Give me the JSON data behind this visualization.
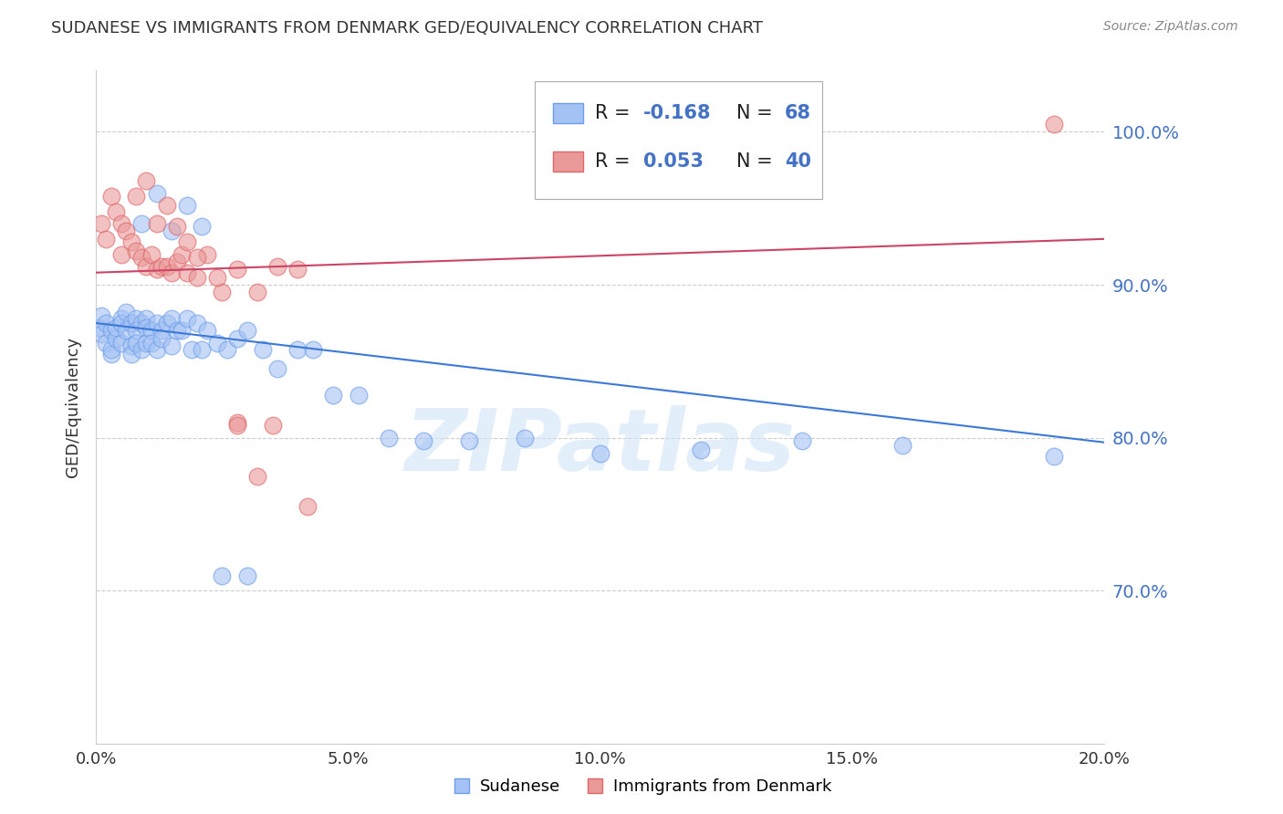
{
  "title": "SUDANESE VS IMMIGRANTS FROM DENMARK GED/EQUIVALENCY CORRELATION CHART",
  "source": "Source: ZipAtlas.com",
  "ylabel": "GED/Equivalency",
  "legend_blue_label": "Sudanese",
  "legend_pink_label": "Immigrants from Denmark",
  "blue_color": "#a4c2f4",
  "pink_color": "#ea9999",
  "blue_edge_color": "#6d9eeb",
  "pink_edge_color": "#e06666",
  "blue_line_color": "#3c78d8",
  "pink_line_color": "#cc4466",
  "legend_text_color": "#4472c4",
  "xmin": 0.0,
  "xmax": 0.2,
  "ymin": 0.6,
  "ymax": 1.04,
  "yticks": [
    0.7,
    0.8,
    0.9,
    1.0
  ],
  "xticks": [
    0.0,
    0.05,
    0.1,
    0.15,
    0.2
  ],
  "blue_scatter_x": [
    0.0005,
    0.001,
    0.001,
    0.002,
    0.002,
    0.003,
    0.003,
    0.003,
    0.004,
    0.004,
    0.005,
    0.005,
    0.005,
    0.006,
    0.006,
    0.007,
    0.007,
    0.007,
    0.008,
    0.008,
    0.008,
    0.009,
    0.009,
    0.01,
    0.01,
    0.01,
    0.011,
    0.011,
    0.012,
    0.012,
    0.013,
    0.013,
    0.014,
    0.015,
    0.015,
    0.016,
    0.017,
    0.018,
    0.019,
    0.02,
    0.021,
    0.022,
    0.024,
    0.026,
    0.028,
    0.03,
    0.033,
    0.036,
    0.04,
    0.043,
    0.047,
    0.052,
    0.058,
    0.065,
    0.074,
    0.085,
    0.1,
    0.12,
    0.14,
    0.16,
    0.19,
    0.009,
    0.012,
    0.015,
    0.018,
    0.021,
    0.025,
    0.03
  ],
  "blue_scatter_y": [
    0.872,
    0.88,
    0.868,
    0.875,
    0.862,
    0.87,
    0.855,
    0.858,
    0.865,
    0.872,
    0.878,
    0.875,
    0.862,
    0.87,
    0.882,
    0.86,
    0.875,
    0.855,
    0.878,
    0.87,
    0.862,
    0.875,
    0.858,
    0.878,
    0.872,
    0.862,
    0.87,
    0.862,
    0.875,
    0.858,
    0.87,
    0.865,
    0.875,
    0.878,
    0.86,
    0.87,
    0.87,
    0.878,
    0.858,
    0.875,
    0.858,
    0.87,
    0.862,
    0.858,
    0.865,
    0.87,
    0.858,
    0.845,
    0.858,
    0.858,
    0.828,
    0.828,
    0.8,
    0.798,
    0.798,
    0.8,
    0.79,
    0.792,
    0.798,
    0.795,
    0.788,
    0.94,
    0.96,
    0.935,
    0.952,
    0.938,
    0.71,
    0.71
  ],
  "pink_scatter_x": [
    0.001,
    0.002,
    0.003,
    0.004,
    0.005,
    0.005,
    0.006,
    0.007,
    0.008,
    0.009,
    0.01,
    0.011,
    0.012,
    0.013,
    0.014,
    0.015,
    0.016,
    0.017,
    0.018,
    0.02,
    0.022,
    0.025,
    0.028,
    0.032,
    0.036,
    0.04,
    0.028,
    0.032,
    0.008,
    0.01,
    0.012,
    0.014,
    0.016,
    0.018,
    0.02,
    0.024,
    0.028,
    0.035,
    0.042,
    0.19
  ],
  "pink_scatter_y": [
    0.94,
    0.93,
    0.958,
    0.948,
    0.92,
    0.94,
    0.935,
    0.928,
    0.922,
    0.918,
    0.912,
    0.92,
    0.91,
    0.912,
    0.912,
    0.908,
    0.915,
    0.92,
    0.908,
    0.905,
    0.92,
    0.895,
    0.91,
    0.895,
    0.912,
    0.91,
    0.81,
    0.775,
    0.958,
    0.968,
    0.94,
    0.952,
    0.938,
    0.928,
    0.918,
    0.905,
    0.808,
    0.808,
    0.755,
    1.005
  ],
  "blue_trend_x": [
    0.0,
    0.2
  ],
  "blue_trend_y": [
    0.875,
    0.797
  ],
  "pink_trend_x": [
    0.0,
    0.2
  ],
  "pink_trend_y": [
    0.908,
    0.93
  ],
  "watermark": "ZIPatlas",
  "background_color": "#ffffff",
  "grid_color": "#cccccc"
}
